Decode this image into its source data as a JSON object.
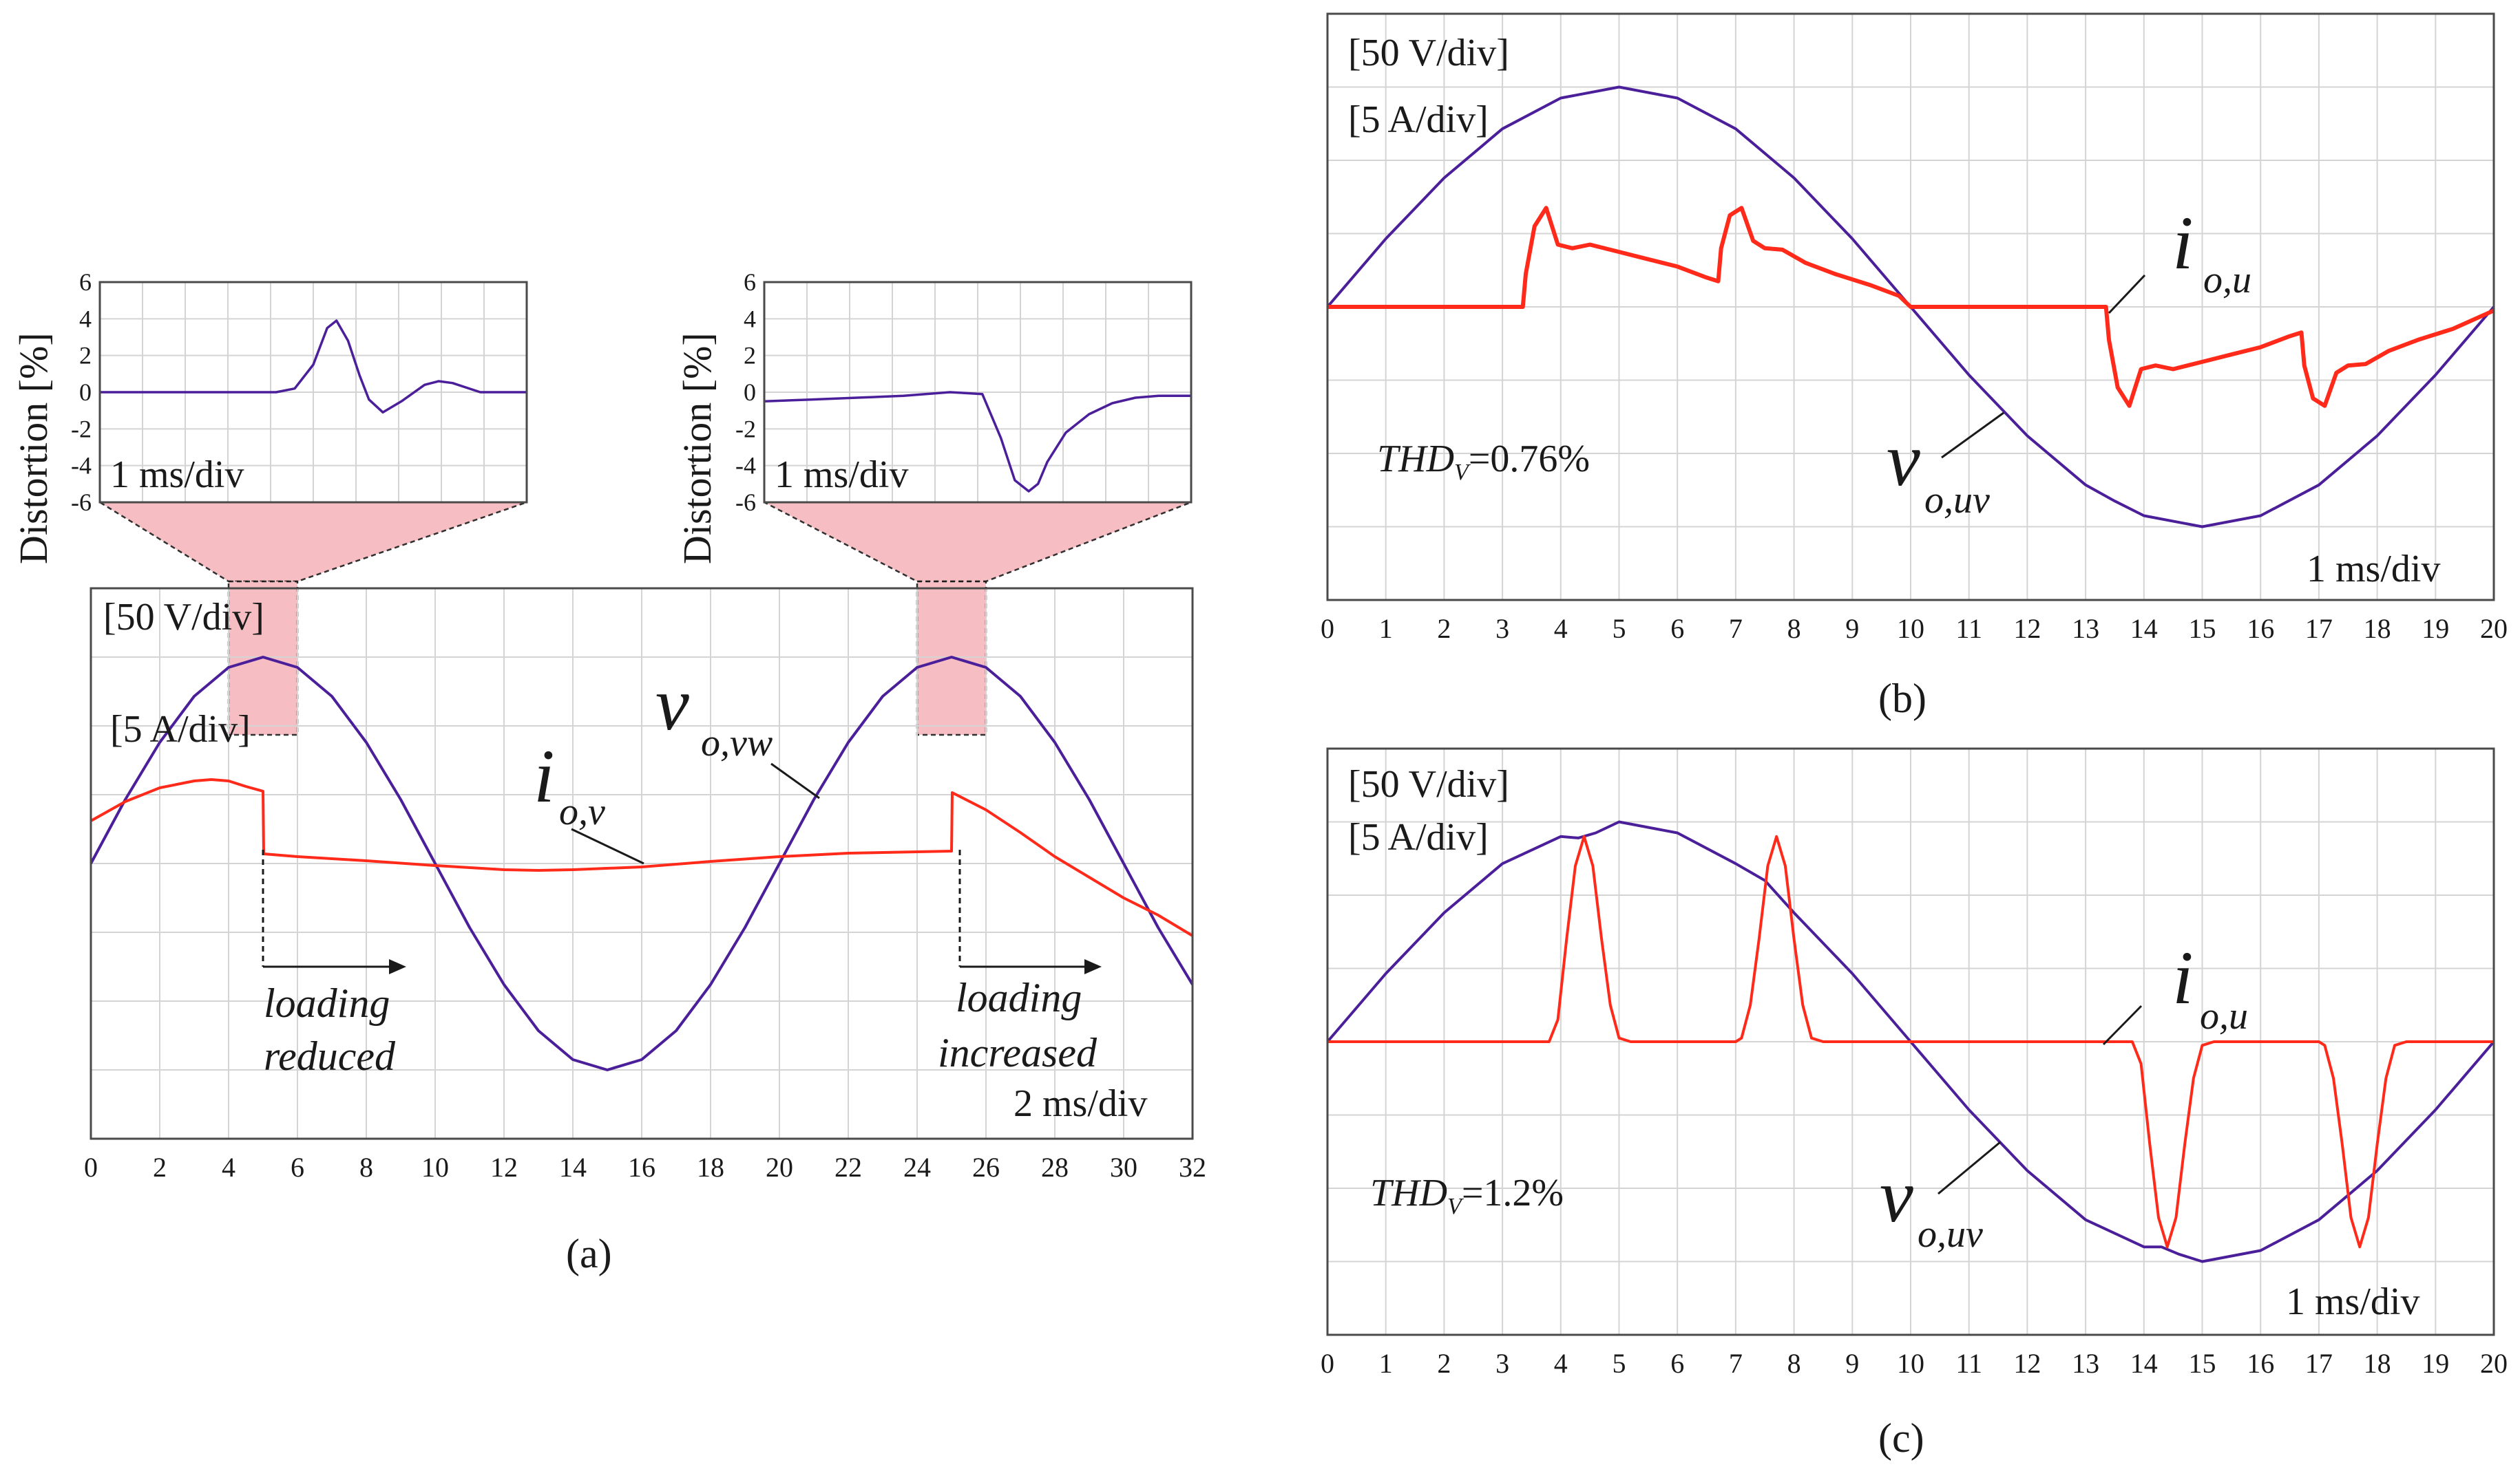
{
  "colors": {
    "voltage": "#4b1f9a",
    "current": "#ff2a1a",
    "grid": "#d4d4d4",
    "frame": "#4a4a4a",
    "highlight": "#f6b7bd"
  },
  "chart_data": [
    {
      "id": "a",
      "type": "line",
      "panel_label": "(a)",
      "scale_volts": "[50 V/div]",
      "scale_amps": "[5 A/div]",
      "timebase": "2 ms/div",
      "xlabel": "",
      "ylabel": "",
      "xlim": [
        0,
        32
      ],
      "ylim": [
        -4,
        4
      ],
      "x_ticks": [
        "0",
        "2",
        "4",
        "6",
        "8",
        "10",
        "12",
        "14",
        "16",
        "18",
        "20",
        "22",
        "24",
        "26",
        "28",
        "30",
        "32"
      ],
      "series": [
        {
          "name": "v_o,vw",
          "label_main": "v",
          "label_sub": "o,vw",
          "x": [
            0,
            1,
            2,
            3,
            4,
            5,
            6,
            7,
            8,
            9,
            10,
            11,
            12,
            13,
            14,
            15,
            16,
            17,
            18,
            19,
            20,
            21,
            22,
            23,
            24,
            25,
            26,
            27,
            28,
            29,
            30,
            31,
            32
          ],
          "y": [
            0,
            0.93,
            1.76,
            2.43,
            2.85,
            3.0,
            2.85,
            2.43,
            1.76,
            0.93,
            0,
            -0.93,
            -1.76,
            -2.43,
            -2.85,
            -3.0,
            -2.85,
            -2.43,
            -1.76,
            -0.93,
            0,
            0.93,
            1.76,
            2.43,
            2.85,
            3.0,
            2.85,
            2.43,
            1.76,
            0.93,
            0,
            -0.93,
            -1.76
          ]
        },
        {
          "name": "i_o,v",
          "label_main": "i",
          "label_sub": "o,v",
          "x": [
            0,
            1,
            2,
            3,
            3.5,
            4,
            4.5,
            5,
            5.02,
            6,
            8,
            10,
            12,
            13,
            14,
            16,
            18,
            20,
            22,
            24,
            25,
            25.02,
            26,
            27,
            28,
            29,
            30,
            31,
            32
          ],
          "y": [
            0.62,
            0.9,
            1.1,
            1.2,
            1.22,
            1.2,
            1.12,
            1.05,
            0.14,
            0.1,
            0.04,
            -0.03,
            -0.09,
            -0.1,
            -0.09,
            -0.05,
            0.03,
            0.1,
            0.15,
            0.17,
            0.18,
            1.03,
            0.78,
            0.45,
            0.1,
            -0.2,
            -0.5,
            -0.75,
            -1.05
          ]
        }
      ],
      "annotations": [
        {
          "line1": "loading",
          "line2": "reduced",
          "x": 5
        },
        {
          "line1": "loading",
          "line2": "increased",
          "x": 25
        }
      ],
      "insets": [
        {
          "id": "inset-1",
          "type": "line",
          "ylabel": "Distortion [%]",
          "timebase": "1 ms/div",
          "ylim": [
            -6,
            6
          ],
          "y_ticks": [
            "6",
            "4",
            "2",
            "0",
            "-2",
            "-4",
            "-6"
          ],
          "zoom_window": [
            4,
            6
          ],
          "series": [
            {
              "name": "distortion",
              "x": [
                0,
                1,
                2,
                3,
                3.8,
                4.2,
                4.6,
                4.9,
                5.1,
                5.35,
                5.6,
                5.8,
                6.1,
                6.5,
                7,
                7.3,
                7.6,
                8.2,
                8.8,
                9.2
              ],
              "y": [
                0,
                0,
                0,
                0,
                0,
                0.2,
                1.5,
                3.5,
                3.9,
                2.8,
                0.9,
                -0.4,
                -1.1,
                -0.5,
                0.4,
                0.6,
                0.5,
                0,
                0,
                0
              ]
            }
          ]
        },
        {
          "id": "inset-2",
          "type": "line",
          "ylabel": "Distortion [%]",
          "timebase": "1 ms/div",
          "ylim": [
            -6,
            6
          ],
          "y_ticks": [
            "6",
            "4",
            "2",
            "0",
            "-2",
            "-4",
            "-6"
          ],
          "zoom_window": [
            24,
            26
          ],
          "series": [
            {
              "name": "distortion",
              "x": [
                0,
                1,
                2,
                3,
                4,
                4.7,
                5.1,
                5.4,
                5.7,
                5.9,
                6.1,
                6.5,
                7,
                7.5,
                8,
                8.5,
                9.2
              ],
              "y": [
                -0.5,
                -0.4,
                -0.3,
                -0.2,
                0,
                -0.1,
                -2.5,
                -4.8,
                -5.4,
                -5.0,
                -3.8,
                -2.2,
                -1.2,
                -0.6,
                -0.3,
                -0.2,
                -0.2
              ]
            }
          ]
        }
      ]
    },
    {
      "id": "b",
      "type": "line",
      "panel_label": "(b)",
      "scale_volts": "[50 V/div]",
      "scale_amps": "[5 A/div]",
      "timebase": "1 ms/div",
      "thd_text": "THD",
      "thd_sub": "V",
      "thd_value": "=0.76%",
      "xlabel": "",
      "ylabel": "",
      "xlim": [
        0,
        20
      ],
      "ylim": [
        -4,
        4
      ],
      "x_ticks": [
        "0",
        "1",
        "2",
        "3",
        "4",
        "5",
        "6",
        "7",
        "8",
        "9",
        "10",
        "11",
        "12",
        "13",
        "14",
        "15",
        "16",
        "17",
        "18",
        "19",
        "20"
      ],
      "series": [
        {
          "name": "v_o,uv",
          "label_main": "v",
          "label_sub": "o,uv",
          "x": [
            0,
            1,
            2,
            3,
            4,
            5,
            6,
            7,
            8,
            9,
            10,
            11,
            12,
            13,
            13.5,
            14,
            15,
            16,
            17,
            18,
            19,
            20
          ],
          "y": [
            0,
            0.93,
            1.76,
            2.43,
            2.85,
            3.0,
            2.85,
            2.43,
            1.76,
            0.93,
            0,
            -0.93,
            -1.76,
            -2.43,
            -2.65,
            -2.85,
            -3.0,
            -2.85,
            -2.43,
            -1.76,
            -0.93,
            0
          ]
        },
        {
          "name": "i_o,u",
          "label_main": "i",
          "label_sub": "o,u",
          "x": [
            0,
            1,
            2,
            3,
            3.35,
            3.4,
            3.55,
            3.75,
            3.95,
            4.2,
            4.5,
            5,
            5.5,
            6,
            6.5,
            6.7,
            6.75,
            6.9,
            7.1,
            7.3,
            7.5,
            7.8,
            8.2,
            8.7,
            9.3,
            9.8,
            10,
            11,
            12,
            13,
            13.35,
            13.4,
            13.55,
            13.75,
            13.95,
            14.2,
            14.5,
            15,
            15.5,
            16,
            16.5,
            16.7,
            16.75,
            16.9,
            17.1,
            17.3,
            17.5,
            17.8,
            18.2,
            18.7,
            19.3,
            20
          ],
          "y": [
            0,
            0,
            0,
            0,
            0,
            0.45,
            1.1,
            1.35,
            0.85,
            0.8,
            0.85,
            0.75,
            0.65,
            0.55,
            0.4,
            0.35,
            0.8,
            1.25,
            1.35,
            0.9,
            0.8,
            0.78,
            0.6,
            0.45,
            0.3,
            0.15,
            0,
            0,
            0,
            0,
            0,
            -0.45,
            -1.1,
            -1.35,
            -0.85,
            -0.8,
            -0.85,
            -0.75,
            -0.65,
            -0.55,
            -0.4,
            -0.35,
            -0.8,
            -1.25,
            -1.35,
            -0.9,
            -0.8,
            -0.78,
            -0.6,
            -0.45,
            -0.3,
            -0.05
          ]
        }
      ]
    },
    {
      "id": "c",
      "type": "line",
      "panel_label": "(c)",
      "scale_volts": "[50 V/div]",
      "scale_amps": "[5 A/div]",
      "timebase": "1 ms/div",
      "thd_text": "THD",
      "thd_sub": "V",
      "thd_value": "=1.2%",
      "xlabel": "",
      "ylabel": "",
      "xlim": [
        0,
        20
      ],
      "ylim": [
        -4,
        4
      ],
      "x_ticks": [
        "0",
        "1",
        "2",
        "3",
        "4",
        "5",
        "6",
        "7",
        "8",
        "9",
        "10",
        "11",
        "12",
        "13",
        "14",
        "15",
        "16",
        "17",
        "18",
        "19",
        "20"
      ],
      "series": [
        {
          "name": "v_o,uv",
          "label_main": "v",
          "label_sub": "o,uv",
          "x": [
            0,
            1,
            2,
            3,
            4,
            4.3,
            4.6,
            5,
            6,
            7,
            7.5,
            8,
            9,
            10,
            11,
            12,
            13,
            14,
            14.3,
            14.6,
            15,
            16,
            17,
            18,
            19,
            20
          ],
          "y": [
            0,
            0.93,
            1.76,
            2.43,
            2.8,
            2.78,
            2.85,
            3.0,
            2.85,
            2.43,
            2.2,
            1.76,
            0.93,
            0,
            -0.93,
            -1.76,
            -2.43,
            -2.8,
            -2.8,
            -2.9,
            -3.0,
            -2.85,
            -2.43,
            -1.76,
            -0.93,
            0
          ]
        },
        {
          "name": "i_o,u",
          "label_main": "i",
          "label_sub": "o,u",
          "x": [
            0,
            1,
            2,
            3,
            3.8,
            3.95,
            4.1,
            4.25,
            4.4,
            4.55,
            4.7,
            4.85,
            5.0,
            5.2,
            6,
            7,
            7.1,
            7.25,
            7.4,
            7.55,
            7.7,
            7.85,
            8.0,
            8.15,
            8.3,
            8.5,
            9,
            10,
            11,
            12,
            13,
            13.8,
            13.95,
            14.1,
            14.25,
            14.4,
            14.55,
            14.7,
            14.85,
            15.0,
            15.2,
            16,
            17,
            17.1,
            17.25,
            17.4,
            17.55,
            17.7,
            17.85,
            18.0,
            18.15,
            18.3,
            18.5,
            19,
            20
          ],
          "y": [
            0,
            0,
            0,
            0,
            0,
            0.3,
            1.4,
            2.4,
            2.8,
            2.4,
            1.4,
            0.5,
            0.05,
            0,
            0,
            0,
            0.05,
            0.5,
            1.4,
            2.4,
            2.8,
            2.4,
            1.4,
            0.5,
            0.05,
            0,
            0,
            0,
            0,
            0,
            0,
            0,
            -0.3,
            -1.4,
            -2.4,
            -2.8,
            -2.4,
            -1.4,
            -0.5,
            -0.05,
            0,
            0,
            0,
            -0.05,
            -0.5,
            -1.4,
            -2.4,
            -2.8,
            -2.4,
            -1.4,
            -0.5,
            -0.05,
            0,
            0,
            0
          ]
        }
      ]
    }
  ]
}
